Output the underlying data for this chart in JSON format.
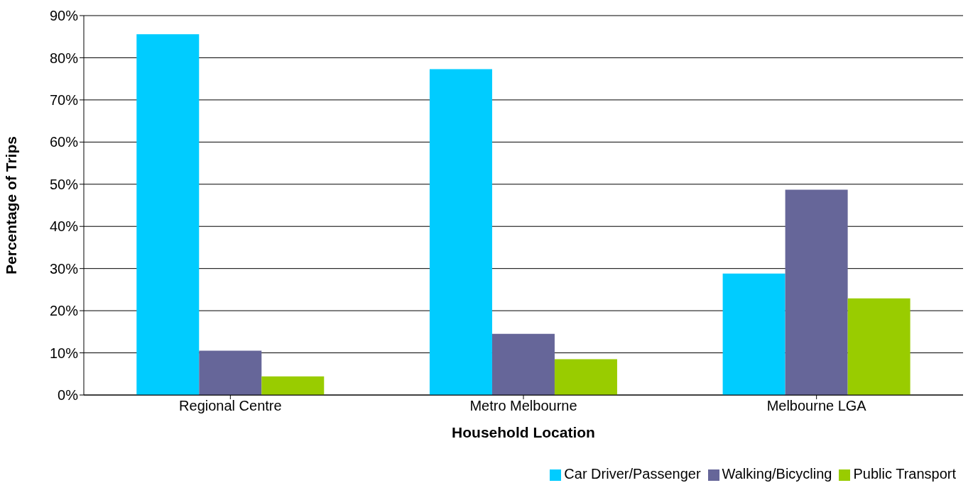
{
  "chart_data": {
    "type": "bar",
    "xlabel": "Household Location",
    "ylabel": "Percentage of Trips",
    "categories": [
      "Regional Centre",
      "Metro Melbourne",
      "Melbourne LGA"
    ],
    "series": [
      {
        "name": "Car Driver/Passenger",
        "color": "#00ccff",
        "values": [
          85.6,
          77.3,
          28.8
        ]
      },
      {
        "name": "Walking/Bicycling",
        "color": "#666699",
        "values": [
          10.5,
          14.5,
          48.7
        ]
      },
      {
        "name": "Public Transport",
        "color": "#99cc00",
        "values": [
          4.4,
          8.5,
          22.9
        ]
      }
    ],
    "ylim": [
      0,
      90
    ],
    "yticks": [
      {
        "value": 0,
        "label": "0%"
      },
      {
        "value": 10,
        "label": "10%"
      },
      {
        "value": 20,
        "label": "20%"
      },
      {
        "value": 30,
        "label": "30%"
      },
      {
        "value": 40,
        "label": "40%"
      },
      {
        "value": 50,
        "label": "50%"
      },
      {
        "value": 60,
        "label": "60%"
      },
      {
        "value": 70,
        "label": "70%"
      },
      {
        "value": 80,
        "label": "80%"
      },
      {
        "value": 90,
        "label": "90%"
      }
    ],
    "grid": "y",
    "legend": "bottom right"
  }
}
